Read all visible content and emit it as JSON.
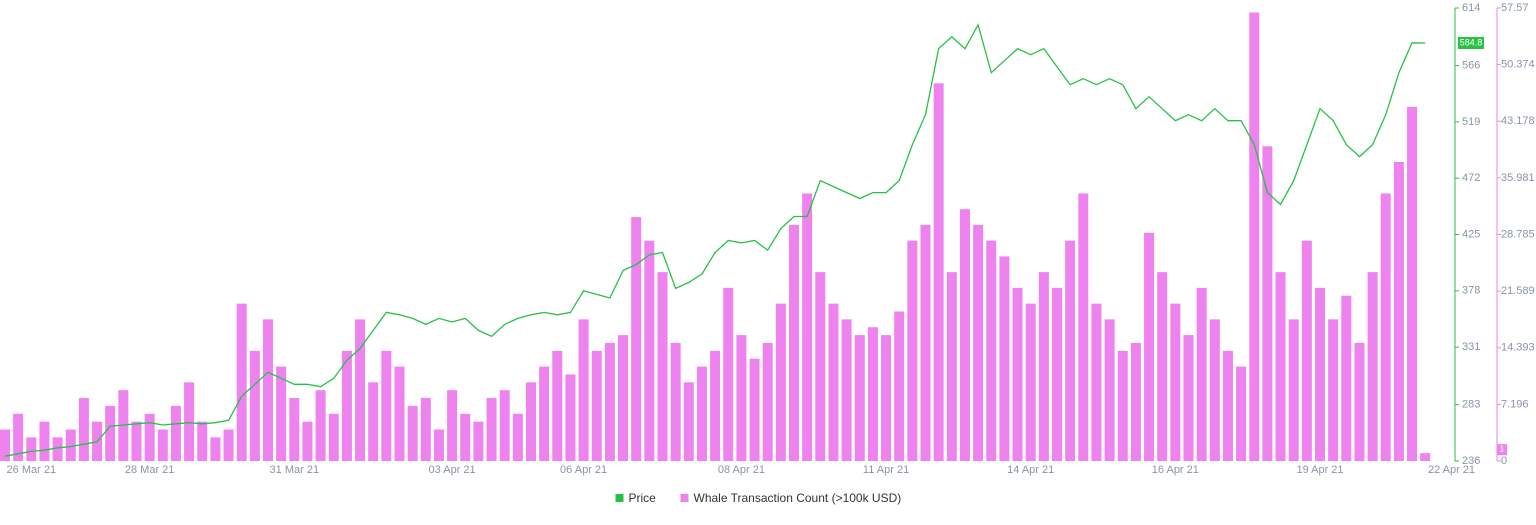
{
  "chart_data": {
    "type": "bar-line",
    "categories": [
      null,
      null,
      "26 Mar 21",
      null,
      null,
      null,
      null,
      null,
      null,
      null,
      null,
      "28 Mar 21",
      null,
      null,
      null,
      null,
      null,
      null,
      null,
      null,
      null,
      null,
      "31 Mar 21",
      null,
      null,
      null,
      null,
      null,
      null,
      null,
      null,
      null,
      null,
      null,
      "03 Apr 21",
      null,
      null,
      null,
      null,
      null,
      null,
      null,
      null,
      null,
      "06 Apr 21",
      null,
      null,
      null,
      null,
      null,
      null,
      null,
      null,
      null,
      null,
      null,
      "08 Apr 21",
      null,
      null,
      null,
      null,
      null,
      null,
      null,
      null,
      null,
      null,
      "11 Apr 21",
      null,
      null,
      null,
      null,
      null,
      null,
      null,
      null,
      null,
      null,
      "14 Apr 21",
      null,
      null,
      null,
      null,
      null,
      null,
      null,
      null,
      null,
      null,
      "16 Apr 21",
      null,
      null,
      null,
      null,
      null,
      null,
      null,
      null,
      null,
      null,
      "19 Apr 21",
      null,
      null,
      null,
      null,
      null,
      null,
      null,
      null,
      null,
      "22 Apr 21"
    ],
    "series": [
      {
        "name": "Price",
        "type": "line",
        "axis": "y",
        "color": "#27c145",
        "values": [
          240,
          242,
          244,
          245,
          247,
          248,
          250,
          252,
          265,
          266,
          267,
          268,
          266,
          267,
          268,
          267,
          268,
          270,
          290,
          300,
          310,
          305,
          300,
          300,
          298,
          305,
          320,
          330,
          345,
          360,
          358,
          355,
          350,
          355,
          352,
          355,
          345,
          340,
          350,
          355,
          358,
          360,
          358,
          360,
          378,
          375,
          372,
          395,
          400,
          408,
          410,
          380,
          385,
          392,
          410,
          420,
          418,
          420,
          412,
          430,
          440,
          440,
          470,
          465,
          460,
          455,
          460,
          460,
          470,
          500,
          525,
          580,
          590,
          580,
          600,
          560,
          570,
          580,
          575,
          580,
          565,
          550,
          555,
          550,
          555,
          550,
          530,
          540,
          530,
          520,
          525,
          520,
          530,
          520,
          520,
          500,
          460,
          450,
          470,
          500,
          530,
          520,
          500,
          490,
          500,
          525,
          560,
          585,
          584.8,
          null,
          null
        ]
      },
      {
        "name": "Whale Transaction Count (>100k USD)",
        "type": "bar",
        "axis": "y2",
        "color": "#ee82ee",
        "values": [
          4,
          6,
          3,
          5,
          3,
          4,
          8,
          5,
          7,
          9,
          5,
          6,
          4,
          7,
          10,
          5,
          3,
          4,
          20,
          14,
          18,
          12,
          8,
          5,
          9,
          6,
          14,
          18,
          10,
          14,
          12,
          7,
          8,
          4,
          9,
          6,
          5,
          8,
          9,
          6,
          10,
          12,
          14,
          11,
          18,
          14,
          15,
          16,
          31,
          28,
          24,
          15,
          10,
          12,
          14,
          22,
          16,
          13,
          15,
          20,
          30,
          34,
          24,
          20,
          18,
          16,
          17,
          16,
          19,
          28,
          30,
          48,
          24,
          32,
          30,
          28,
          26,
          22,
          20,
          24,
          22,
          28,
          34,
          20,
          18,
          14,
          15,
          29,
          24,
          20,
          16,
          22,
          18,
          14,
          12,
          57,
          40,
          24,
          18,
          28,
          22,
          18,
          21,
          15,
          24,
          34,
          38,
          45,
          1,
          null,
          null
        ]
      }
    ],
    "ylim": [
      236,
      614
    ],
    "yticks": [
      236,
      283,
      331,
      378,
      425,
      472,
      519,
      566,
      614
    ],
    "y2lim": [
      0,
      57.57
    ],
    "y2ticks": [
      0,
      7.196,
      14.393,
      21.589,
      28.785,
      35.981,
      43.178,
      50.374,
      57.57
    ],
    "grid": false,
    "legend": "bottom"
  }
}
